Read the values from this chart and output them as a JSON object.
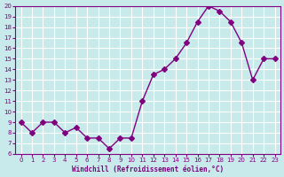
{
  "x": [
    0,
    1,
    2,
    3,
    4,
    5,
    6,
    7,
    8,
    9,
    10,
    11,
    12,
    13,
    14,
    15,
    16,
    17,
    18,
    19,
    20,
    21,
    22,
    23
  ],
  "y": [
    9,
    8,
    9,
    9,
    8,
    8.5,
    7.5,
    7.5,
    6.5,
    7.5,
    7.5,
    11,
    13.5,
    14,
    15,
    16.5,
    18.5,
    20,
    19.5,
    18.5,
    16.5,
    13,
    15,
    15
  ],
  "line_color": "#800080",
  "marker": "D",
  "marker_size": 3,
  "bg_color": "#c8eaea",
  "grid_color": "#ffffff",
  "xlabel": "Windchill (Refroidissement éolien,°C)",
  "xlabel_color": "#800080",
  "tick_color": "#800080",
  "ylim": [
    6,
    20
  ],
  "xlim": [
    -0.5,
    23.5
  ],
  "yticks": [
    6,
    7,
    8,
    9,
    10,
    11,
    12,
    13,
    14,
    15,
    16,
    17,
    18,
    19,
    20
  ],
  "xticks": [
    0,
    1,
    2,
    3,
    4,
    5,
    6,
    7,
    8,
    9,
    10,
    11,
    12,
    13,
    14,
    15,
    16,
    17,
    18,
    19,
    20,
    21,
    22,
    23
  ]
}
